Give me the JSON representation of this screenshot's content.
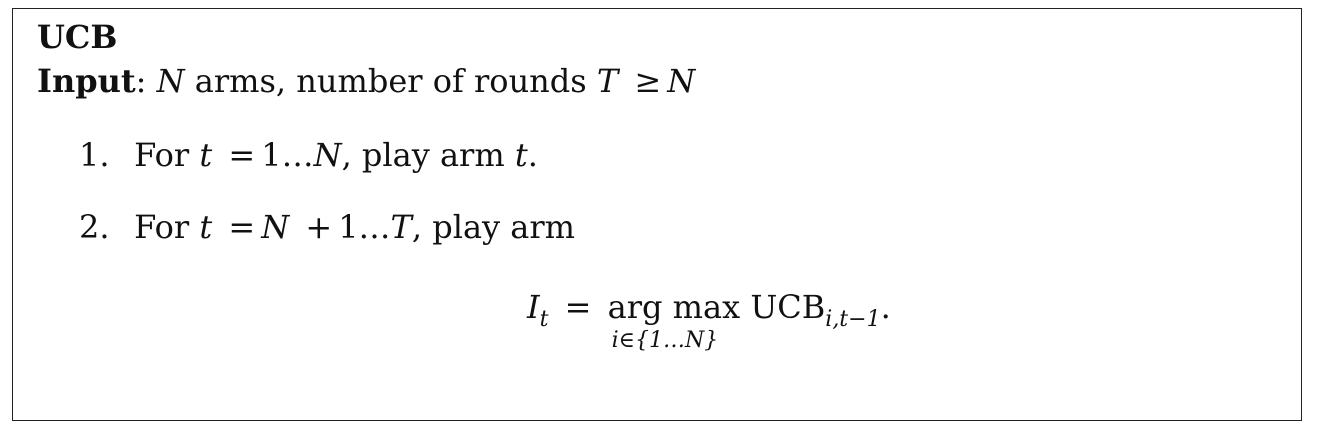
{
  "algorithm": {
    "title": "UCB",
    "input_label": "Input",
    "input_colon": ":",
    "input_n": "N",
    "input_text1": "arms, number of rounds",
    "input_t": "T",
    "input_ge": "≥",
    "input_n2": "N"
  },
  "steps": [
    {
      "number": "1.",
      "text_for": "For",
      "var_t": "t",
      "eq": "=",
      "range_start": "1",
      "dots": "…",
      "range_end": "N",
      "text_play": ", play arm",
      "arm_var": "t",
      "end": "."
    },
    {
      "number": "2.",
      "text_for": "For",
      "var_t": "t",
      "eq": "=",
      "range_start": "N",
      "plus": "+",
      "one": "1",
      "dots": "…",
      "range_end": "T",
      "text_play": ", play arm"
    }
  ],
  "equation": {
    "lhs": "I",
    "lhs_sub": "t",
    "eq": "=",
    "operator": "arg max",
    "under": "i∈{1…N}",
    "rhs": "UCB",
    "rhs_sub": "i,t−1",
    "end": "."
  }
}
